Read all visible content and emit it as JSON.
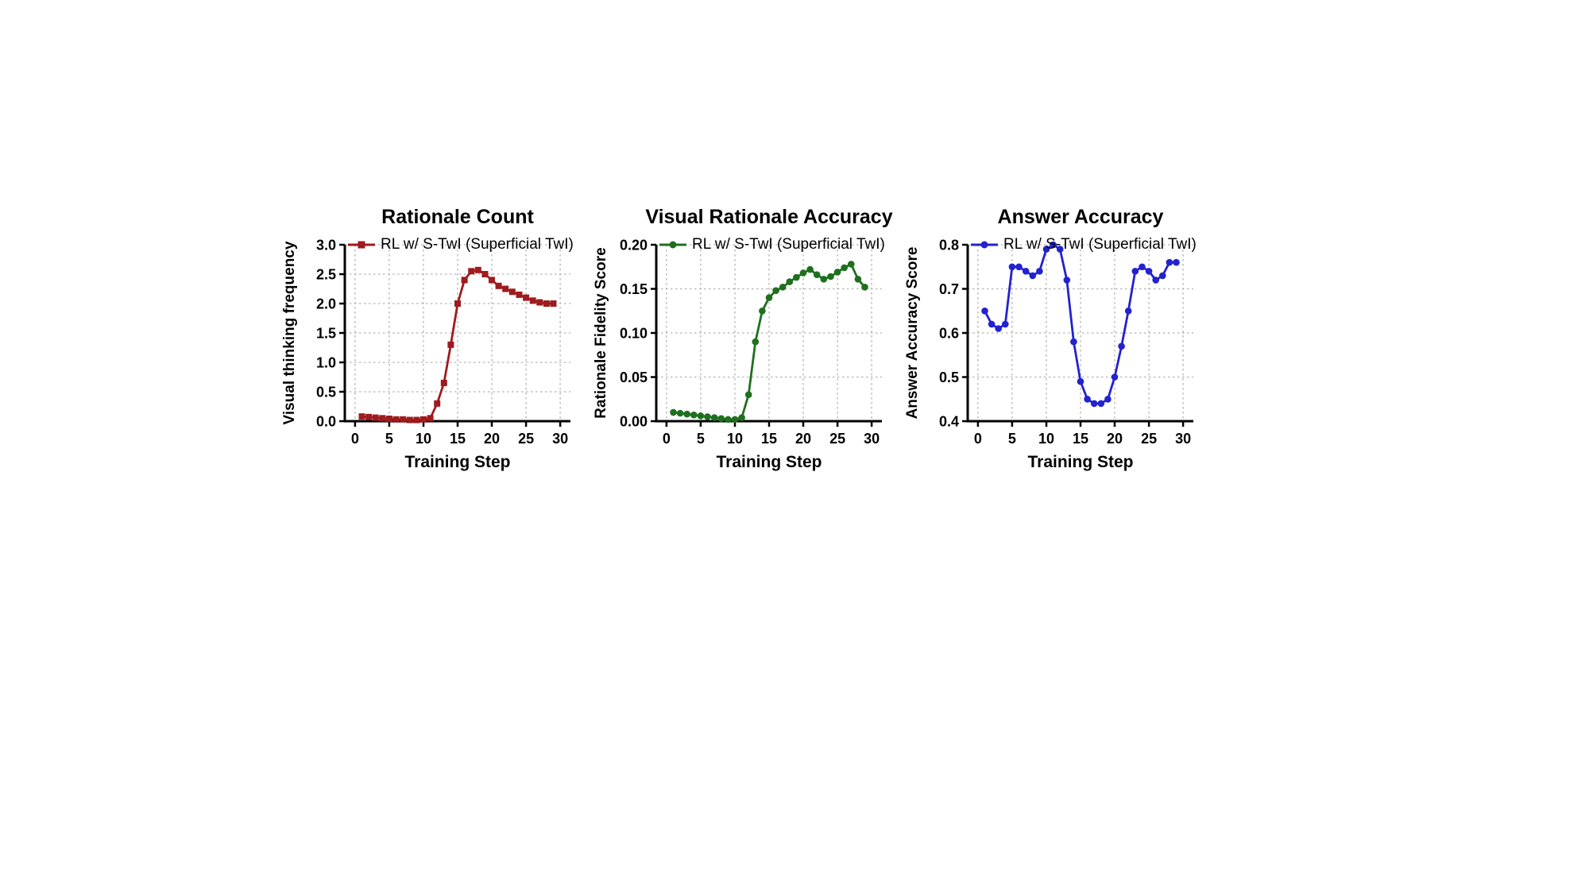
{
  "page": {
    "background": "#ffffff"
  },
  "chart_data": [
    {
      "type": "line",
      "title": "Rationale Count",
      "xlabel": "Training Step",
      "ylabel": "Visual thinking frequency",
      "series_label": "RL w/ S-TwI (Superficial TwI)",
      "color": "#9e1b1e",
      "marker": "square",
      "grid": "dotted",
      "x": [
        1,
        2,
        3,
        4,
        5,
        6,
        7,
        8,
        9,
        10,
        11,
        12,
        13,
        14,
        15,
        16,
        17,
        18,
        19,
        20,
        21,
        22,
        23,
        24,
        25,
        26,
        27,
        28,
        29
      ],
      "values": [
        0.08,
        0.07,
        0.06,
        0.05,
        0.04,
        0.03,
        0.03,
        0.02,
        0.02,
        0.03,
        0.05,
        0.3,
        0.65,
        1.3,
        2.0,
        2.4,
        2.55,
        2.57,
        2.5,
        2.4,
        2.3,
        2.25,
        2.2,
        2.15,
        2.1,
        2.05,
        2.02,
        2.0,
        2.0
      ],
      "xlim": [
        -1.5,
        31.5
      ],
      "ylim": [
        0,
        3.0
      ],
      "xticks": [
        0,
        5,
        10,
        15,
        20,
        25,
        30
      ],
      "xtick_labels": [
        "0",
        "5",
        "10",
        "15",
        "20",
        "25",
        "30"
      ],
      "yticks": [
        0,
        0.5,
        1.0,
        1.5,
        2.0,
        2.5,
        3.0
      ],
      "ytick_labels": [
        "0.0",
        "0.5",
        "1.0",
        "1.5",
        "2.0",
        "2.5",
        "3.0"
      ]
    },
    {
      "type": "line",
      "title": "Visual Rationale Accuracy",
      "xlabel": "Training Step",
      "ylabel": "Rationale Fidelity Score",
      "series_label": "RL w/ S-TwI (Superficial TwI)",
      "color": "#1e701e",
      "marker": "circle",
      "grid": "dotted",
      "x": [
        1,
        2,
        3,
        4,
        5,
        6,
        7,
        8,
        9,
        10,
        11,
        12,
        13,
        14,
        15,
        16,
        17,
        18,
        19,
        20,
        21,
        22,
        23,
        24,
        25,
        26,
        27,
        28,
        29
      ],
      "values": [
        0.01,
        0.009,
        0.008,
        0.007,
        0.006,
        0.005,
        0.004,
        0.003,
        0.002,
        0.002,
        0.004,
        0.03,
        0.09,
        0.125,
        0.14,
        0.148,
        0.152,
        0.158,
        0.163,
        0.168,
        0.172,
        0.166,
        0.161,
        0.164,
        0.169,
        0.174,
        0.178,
        0.161,
        0.152
      ],
      "xlim": [
        -1.5,
        31.5
      ],
      "ylim": [
        0,
        0.2
      ],
      "xticks": [
        0,
        5,
        10,
        15,
        20,
        25,
        30
      ],
      "xtick_labels": [
        "0",
        "5",
        "10",
        "15",
        "20",
        "25",
        "30"
      ],
      "yticks": [
        0,
        0.05,
        0.1,
        0.15,
        0.2
      ],
      "ytick_labels": [
        "0.00",
        "0.05",
        "0.10",
        "0.15",
        "0.20"
      ]
    },
    {
      "type": "line",
      "title": "Answer Accuracy",
      "xlabel": "Training Step",
      "ylabel": "Answer Accuracy Score",
      "series_label": "RL w/ S-TwI (Superficial TwI)",
      "color": "#2222cf",
      "marker": "circle",
      "grid": "dotted",
      "x": [
        1,
        2,
        3,
        4,
        5,
        6,
        7,
        8,
        9,
        10,
        11,
        12,
        13,
        14,
        15,
        16,
        17,
        18,
        19,
        20,
        21,
        22,
        23,
        24,
        25,
        26,
        27,
        28,
        29
      ],
      "values": [
        0.65,
        0.62,
        0.61,
        0.62,
        0.75,
        0.75,
        0.74,
        0.73,
        0.74,
        0.79,
        0.8,
        0.79,
        0.72,
        0.58,
        0.49,
        0.45,
        0.44,
        0.44,
        0.45,
        0.5,
        0.57,
        0.65,
        0.74,
        0.75,
        0.74,
        0.72,
        0.73,
        0.76,
        0.76
      ],
      "xlim": [
        -1.5,
        31.5
      ],
      "ylim": [
        0.4,
        0.8
      ],
      "xticks": [
        0,
        5,
        10,
        15,
        20,
        25,
        30
      ],
      "xtick_labels": [
        "0",
        "5",
        "10",
        "15",
        "20",
        "25",
        "30"
      ],
      "yticks": [
        0.4,
        0.5,
        0.6,
        0.7,
        0.8
      ],
      "ytick_labels": [
        "0.4",
        "0.5",
        "0.6",
        "0.7",
        "0.8"
      ]
    }
  ]
}
